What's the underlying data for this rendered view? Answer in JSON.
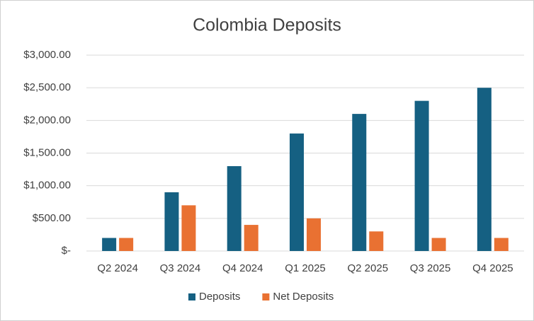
{
  "chart_data": {
    "type": "bar",
    "title": "Colombia Deposits",
    "categories": [
      "Q2 2024",
      "Q3 2024",
      "Q4 2024",
      "Q1 2025",
      "Q2 2025",
      "Q3 2025",
      "Q4 2025"
    ],
    "series": [
      {
        "name": "Deposits",
        "color": "#156082",
        "values": [
          200,
          900,
          1300,
          1800,
          2100,
          2300,
          2500
        ]
      },
      {
        "name": "Net Deposits",
        "color": "#e97132",
        "values": [
          200,
          700,
          400,
          500,
          300,
          200,
          200
        ]
      }
    ],
    "ylim": [
      0,
      3000
    ],
    "yticks": [
      {
        "value": 0,
        "label": "$-"
      },
      {
        "value": 500,
        "label": "$500.00"
      },
      {
        "value": 1000,
        "label": "$1,000.00"
      },
      {
        "value": 1500,
        "label": "$1,500.00"
      },
      {
        "value": 2000,
        "label": "$2,000.00"
      },
      {
        "value": 2500,
        "label": "$2,500.00"
      },
      {
        "value": 3000,
        "label": "$3,000.00"
      }
    ],
    "grid": true,
    "legend": "bottom"
  }
}
